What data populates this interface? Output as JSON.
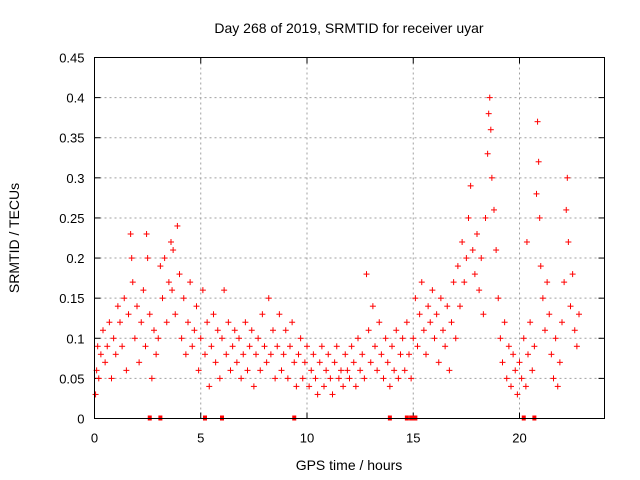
{
  "chart_data": {
    "type": "scatter",
    "title": "Day 268 of 2019, SRMTID for receiver uyar",
    "xlabel": "GPS time / hours",
    "ylabel": "SRMTID / TECUs",
    "xlim": [
      0,
      24
    ],
    "ylim": [
      0,
      0.45
    ],
    "xticks": [
      0,
      5,
      10,
      15,
      20
    ],
    "xtick_labels": [
      "0",
      "5",
      "10",
      "15",
      "20"
    ],
    "yticks": [
      0,
      0.05,
      0.1,
      0.15,
      0.2,
      0.25,
      0.3,
      0.35,
      0.4,
      0.45
    ],
    "ytick_labels": [
      "0",
      "0.05",
      "0.1",
      "0.15",
      "0.2",
      "0.25",
      "0.3",
      "0.35",
      "0.4",
      "0.45"
    ],
    "grid": true,
    "marker": "+",
    "color": "#ff0000",
    "zero_value_times": [
      2.6,
      3.1,
      5.2,
      6.0,
      9.4,
      13.9,
      14.7,
      14.9,
      15.0,
      15.1,
      20.2,
      20.7
    ],
    "points": [
      {
        "x": 0.05,
        "y": 0.03
      },
      {
        "x": 0.1,
        "y": 0.06
      },
      {
        "x": 0.15,
        "y": 0.09
      },
      {
        "x": 0.2,
        "y": 0.05
      },
      {
        "x": 0.3,
        "y": 0.08
      },
      {
        "x": 0.4,
        "y": 0.11
      },
      {
        "x": 0.5,
        "y": 0.07
      },
      {
        "x": 0.6,
        "y": 0.09
      },
      {
        "x": 0.7,
        "y": 0.12
      },
      {
        "x": 0.8,
        "y": 0.05
      },
      {
        "x": 0.9,
        "y": 0.1
      },
      {
        "x": 1.0,
        "y": 0.08
      },
      {
        "x": 1.1,
        "y": 0.14
      },
      {
        "x": 1.2,
        "y": 0.12
      },
      {
        "x": 1.3,
        "y": 0.09
      },
      {
        "x": 1.4,
        "y": 0.15
      },
      {
        "x": 1.5,
        "y": 0.06
      },
      {
        "x": 1.6,
        "y": 0.13
      },
      {
        "x": 1.7,
        "y": 0.23
      },
      {
        "x": 1.75,
        "y": 0.2
      },
      {
        "x": 1.8,
        "y": 0.17
      },
      {
        "x": 1.9,
        "y": 0.1
      },
      {
        "x": 2.0,
        "y": 0.14
      },
      {
        "x": 2.1,
        "y": 0.07
      },
      {
        "x": 2.2,
        "y": 0.12
      },
      {
        "x": 2.3,
        "y": 0.16
      },
      {
        "x": 2.4,
        "y": 0.09
      },
      {
        "x": 2.45,
        "y": 0.23
      },
      {
        "x": 2.5,
        "y": 0.2
      },
      {
        "x": 2.6,
        "y": 0.13
      },
      {
        "x": 2.7,
        "y": 0.05
      },
      {
        "x": 2.8,
        "y": 0.11
      },
      {
        "x": 2.9,
        "y": 0.08
      },
      {
        "x": 3.0,
        "y": 0.1
      },
      {
        "x": 3.1,
        "y": 0.19
      },
      {
        "x": 3.2,
        "y": 0.15
      },
      {
        "x": 3.3,
        "y": 0.2
      },
      {
        "x": 3.4,
        "y": 0.12
      },
      {
        "x": 3.5,
        "y": 0.17
      },
      {
        "x": 3.6,
        "y": 0.22
      },
      {
        "x": 3.65,
        "y": 0.16
      },
      {
        "x": 3.7,
        "y": 0.21
      },
      {
        "x": 3.8,
        "y": 0.13
      },
      {
        "x": 3.9,
        "y": 0.24
      },
      {
        "x": 4.0,
        "y": 0.18
      },
      {
        "x": 4.1,
        "y": 0.1
      },
      {
        "x": 4.2,
        "y": 0.15
      },
      {
        "x": 4.3,
        "y": 0.08
      },
      {
        "x": 4.4,
        "y": 0.12
      },
      {
        "x": 4.5,
        "y": 0.17
      },
      {
        "x": 4.6,
        "y": 0.09
      },
      {
        "x": 4.7,
        "y": 0.11
      },
      {
        "x": 4.8,
        "y": 0.14
      },
      {
        "x": 4.9,
        "y": 0.06
      },
      {
        "x": 5.0,
        "y": 0.1
      },
      {
        "x": 5.1,
        "y": 0.16
      },
      {
        "x": 5.2,
        "y": 0.08
      },
      {
        "x": 5.3,
        "y": 0.12
      },
      {
        "x": 5.4,
        "y": 0.04
      },
      {
        "x": 5.5,
        "y": 0.09
      },
      {
        "x": 5.6,
        "y": 0.13
      },
      {
        "x": 5.7,
        "y": 0.07
      },
      {
        "x": 5.8,
        "y": 0.11
      },
      {
        "x": 5.9,
        "y": 0.05
      },
      {
        "x": 6.0,
        "y": 0.1
      },
      {
        "x": 6.1,
        "y": 0.16
      },
      {
        "x": 6.2,
        "y": 0.08
      },
      {
        "x": 6.3,
        "y": 0.12
      },
      {
        "x": 6.4,
        "y": 0.06
      },
      {
        "x": 6.5,
        "y": 0.09
      },
      {
        "x": 6.6,
        "y": 0.11
      },
      {
        "x": 6.7,
        "y": 0.07
      },
      {
        "x": 6.8,
        "y": 0.1
      },
      {
        "x": 6.9,
        "y": 0.05
      },
      {
        "x": 7.0,
        "y": 0.08
      },
      {
        "x": 7.1,
        "y": 0.12
      },
      {
        "x": 7.2,
        "y": 0.06
      },
      {
        "x": 7.3,
        "y": 0.09
      },
      {
        "x": 7.4,
        "y": 0.11
      },
      {
        "x": 7.5,
        "y": 0.04
      },
      {
        "x": 7.6,
        "y": 0.08
      },
      {
        "x": 7.7,
        "y": 0.1
      },
      {
        "x": 7.8,
        "y": 0.06
      },
      {
        "x": 7.9,
        "y": 0.13
      },
      {
        "x": 8.0,
        "y": 0.09
      },
      {
        "x": 8.1,
        "y": 0.07
      },
      {
        "x": 8.2,
        "y": 0.15
      },
      {
        "x": 8.3,
        "y": 0.08
      },
      {
        "x": 8.4,
        "y": 0.11
      },
      {
        "x": 8.5,
        "y": 0.05
      },
      {
        "x": 8.6,
        "y": 0.09
      },
      {
        "x": 8.7,
        "y": 0.13
      },
      {
        "x": 8.8,
        "y": 0.06
      },
      {
        "x": 8.9,
        "y": 0.08
      },
      {
        "x": 9.0,
        "y": 0.11
      },
      {
        "x": 9.1,
        "y": 0.05
      },
      {
        "x": 9.2,
        "y": 0.09
      },
      {
        "x": 9.3,
        "y": 0.12
      },
      {
        "x": 9.4,
        "y": 0.07
      },
      {
        "x": 9.5,
        "y": 0.04
      },
      {
        "x": 9.6,
        "y": 0.08
      },
      {
        "x": 9.7,
        "y": 0.1
      },
      {
        "x": 9.8,
        "y": 0.05
      },
      {
        "x": 9.9,
        "y": 0.07
      },
      {
        "x": 10.0,
        "y": 0.09
      },
      {
        "x": 10.1,
        "y": 0.04
      },
      {
        "x": 10.2,
        "y": 0.06
      },
      {
        "x": 10.3,
        "y": 0.08
      },
      {
        "x": 10.4,
        "y": 0.05
      },
      {
        "x": 10.5,
        "y": 0.03
      },
      {
        "x": 10.6,
        "y": 0.07
      },
      {
        "x": 10.7,
        "y": 0.09
      },
      {
        "x": 10.8,
        "y": 0.04
      },
      {
        "x": 10.9,
        "y": 0.06
      },
      {
        "x": 11.0,
        "y": 0.08
      },
      {
        "x": 11.1,
        "y": 0.05
      },
      {
        "x": 11.2,
        "y": 0.03
      },
      {
        "x": 11.3,
        "y": 0.07
      },
      {
        "x": 11.4,
        "y": 0.09
      },
      {
        "x": 11.5,
        "y": 0.05
      },
      {
        "x": 11.6,
        "y": 0.06
      },
      {
        "x": 11.7,
        "y": 0.04
      },
      {
        "x": 11.8,
        "y": 0.08
      },
      {
        "x": 11.9,
        "y": 0.06
      },
      {
        "x": 12.0,
        "y": 0.05
      },
      {
        "x": 12.1,
        "y": 0.09
      },
      {
        "x": 12.2,
        "y": 0.07
      },
      {
        "x": 12.3,
        "y": 0.04
      },
      {
        "x": 12.4,
        "y": 0.1
      },
      {
        "x": 12.5,
        "y": 0.06
      },
      {
        "x": 12.6,
        "y": 0.08
      },
      {
        "x": 12.7,
        "y": 0.05
      },
      {
        "x": 12.8,
        "y": 0.18
      },
      {
        "x": 12.9,
        "y": 0.11
      },
      {
        "x": 13.0,
        "y": 0.07
      },
      {
        "x": 13.1,
        "y": 0.14
      },
      {
        "x": 13.2,
        "y": 0.09
      },
      {
        "x": 13.3,
        "y": 0.06
      },
      {
        "x": 13.4,
        "y": 0.12
      },
      {
        "x": 13.5,
        "y": 0.08
      },
      {
        "x": 13.6,
        "y": 0.05
      },
      {
        "x": 13.7,
        "y": 0.1
      },
      {
        "x": 13.8,
        "y": 0.07
      },
      {
        "x": 13.9,
        "y": 0.04
      },
      {
        "x": 14.0,
        "y": 0.09
      },
      {
        "x": 14.1,
        "y": 0.06
      },
      {
        "x": 14.2,
        "y": 0.11
      },
      {
        "x": 14.3,
        "y": 0.05
      },
      {
        "x": 14.4,
        "y": 0.08
      },
      {
        "x": 14.5,
        "y": 0.1
      },
      {
        "x": 14.6,
        "y": 0.06
      },
      {
        "x": 14.7,
        "y": 0.12
      },
      {
        "x": 14.8,
        "y": 0.08
      },
      {
        "x": 14.9,
        "y": 0.05
      },
      {
        "x": 15.0,
        "y": 0.1
      },
      {
        "x": 15.1,
        "y": 0.15
      },
      {
        "x": 15.2,
        "y": 0.09
      },
      {
        "x": 15.3,
        "y": 0.13
      },
      {
        "x": 15.4,
        "y": 0.17
      },
      {
        "x": 15.5,
        "y": 0.11
      },
      {
        "x": 15.6,
        "y": 0.08
      },
      {
        "x": 15.7,
        "y": 0.14
      },
      {
        "x": 15.8,
        "y": 0.12
      },
      {
        "x": 15.9,
        "y": 0.16
      },
      {
        "x": 16.0,
        "y": 0.1
      },
      {
        "x": 16.1,
        "y": 0.13
      },
      {
        "x": 16.2,
        "y": 0.07
      },
      {
        "x": 16.3,
        "y": 0.15
      },
      {
        "x": 16.4,
        "y": 0.11
      },
      {
        "x": 16.5,
        "y": 0.09
      },
      {
        "x": 16.6,
        "y": 0.14
      },
      {
        "x": 16.7,
        "y": 0.06
      },
      {
        "x": 16.8,
        "y": 0.12
      },
      {
        "x": 16.9,
        "y": 0.17
      },
      {
        "x": 17.0,
        "y": 0.1
      },
      {
        "x": 17.1,
        "y": 0.19
      },
      {
        "x": 17.2,
        "y": 0.14
      },
      {
        "x": 17.3,
        "y": 0.22
      },
      {
        "x": 17.4,
        "y": 0.17
      },
      {
        "x": 17.5,
        "y": 0.2
      },
      {
        "x": 17.6,
        "y": 0.25
      },
      {
        "x": 17.7,
        "y": 0.29
      },
      {
        "x": 17.8,
        "y": 0.21
      },
      {
        "x": 17.9,
        "y": 0.18
      },
      {
        "x": 18.0,
        "y": 0.23
      },
      {
        "x": 18.1,
        "y": 0.16
      },
      {
        "x": 18.2,
        "y": 0.2
      },
      {
        "x": 18.3,
        "y": 0.13
      },
      {
        "x": 18.4,
        "y": 0.25
      },
      {
        "x": 18.5,
        "y": 0.33
      },
      {
        "x": 18.55,
        "y": 0.38
      },
      {
        "x": 18.6,
        "y": 0.4
      },
      {
        "x": 18.65,
        "y": 0.36
      },
      {
        "x": 18.7,
        "y": 0.3
      },
      {
        "x": 18.8,
        "y": 0.26
      },
      {
        "x": 18.9,
        "y": 0.21
      },
      {
        "x": 19.0,
        "y": 0.15
      },
      {
        "x": 19.1,
        "y": 0.1
      },
      {
        "x": 19.2,
        "y": 0.07
      },
      {
        "x": 19.3,
        "y": 0.12
      },
      {
        "x": 19.4,
        "y": 0.05
      },
      {
        "x": 19.5,
        "y": 0.09
      },
      {
        "x": 19.6,
        "y": 0.04
      },
      {
        "x": 19.7,
        "y": 0.08
      },
      {
        "x": 19.8,
        "y": 0.06
      },
      {
        "x": 19.9,
        "y": 0.03
      },
      {
        "x": 20.0,
        "y": 0.07
      },
      {
        "x": 20.1,
        "y": 0.05
      },
      {
        "x": 20.2,
        "y": 0.1
      },
      {
        "x": 20.3,
        "y": 0.04
      },
      {
        "x": 20.35,
        "y": 0.22
      },
      {
        "x": 20.4,
        "y": 0.08
      },
      {
        "x": 20.5,
        "y": 0.12
      },
      {
        "x": 20.6,
        "y": 0.06
      },
      {
        "x": 20.7,
        "y": 0.09
      },
      {
        "x": 20.8,
        "y": 0.28
      },
      {
        "x": 20.85,
        "y": 0.37
      },
      {
        "x": 20.9,
        "y": 0.32
      },
      {
        "x": 20.95,
        "y": 0.25
      },
      {
        "x": 21.0,
        "y": 0.19
      },
      {
        "x": 21.1,
        "y": 0.15
      },
      {
        "x": 21.2,
        "y": 0.11
      },
      {
        "x": 21.3,
        "y": 0.17
      },
      {
        "x": 21.4,
        "y": 0.13
      },
      {
        "x": 21.5,
        "y": 0.08
      },
      {
        "x": 21.6,
        "y": 0.05
      },
      {
        "x": 21.7,
        "y": 0.1
      },
      {
        "x": 21.8,
        "y": 0.04
      },
      {
        "x": 21.9,
        "y": 0.07
      },
      {
        "x": 22.0,
        "y": 0.12
      },
      {
        "x": 22.1,
        "y": 0.17
      },
      {
        "x": 22.2,
        "y": 0.26
      },
      {
        "x": 22.25,
        "y": 0.3
      },
      {
        "x": 22.3,
        "y": 0.22
      },
      {
        "x": 22.4,
        "y": 0.14
      },
      {
        "x": 22.5,
        "y": 0.18
      },
      {
        "x": 22.6,
        "y": 0.11
      },
      {
        "x": 22.7,
        "y": 0.09
      },
      {
        "x": 22.8,
        "y": 0.13
      }
    ]
  }
}
